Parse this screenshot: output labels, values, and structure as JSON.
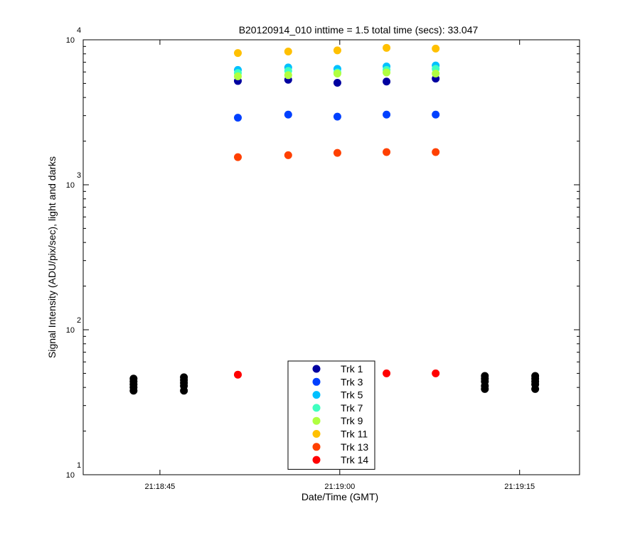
{
  "chart_data": {
    "type": "scatter",
    "title": "B20120914_010 inttime = 1.5 total time (secs): 33.047",
    "xlabel": "Date/Time (GMT)",
    "ylabel": "Signal Intensity (ADU/pix/sec), light and darks",
    "y_scale": "log",
    "ylim": [
      10,
      10000
    ],
    "xlim": [
      "21:18:38.6",
      "21:19:20.0"
    ],
    "x_ticks": [
      "21:18:45",
      "21:19:00",
      "21:19:15"
    ],
    "y_ticks": [
      {
        "base": "10",
        "exp": "1"
      },
      {
        "base": "10",
        "exp": "2"
      },
      {
        "base": "10",
        "exp": "3"
      },
      {
        "base": "10",
        "exp": "4"
      }
    ],
    "grid": false,
    "legend": "bottom-center",
    "series": [
      {
        "name": "Trk 1",
        "color": "#0000a0",
        "x": [
          "21:18:51.5",
          "21:18:55.7",
          "21:18:59.8",
          "21:19:03.9",
          "21:19:08.0"
        ],
        "y": [
          5200,
          5300,
          5050,
          5150,
          5400
        ]
      },
      {
        "name": "Trk 3",
        "color": "#0040ff",
        "x": [
          "21:18:51.5",
          "21:18:55.7",
          "21:18:59.8",
          "21:19:03.9",
          "21:19:08.0"
        ],
        "y": [
          2900,
          3050,
          2950,
          3050,
          3050
        ]
      },
      {
        "name": "Trk 5",
        "color": "#00c0ff",
        "x": [
          "21:18:51.5",
          "21:18:55.7",
          "21:18:59.8",
          "21:19:03.9",
          "21:19:08.0"
        ],
        "y": [
          6200,
          6450,
          6300,
          6550,
          6650
        ]
      },
      {
        "name": "Trk 7",
        "color": "#40ffc0",
        "x": [
          "21:18:51.5",
          "21:18:55.7",
          "21:18:59.8",
          "21:19:03.9",
          "21:19:08.0"
        ],
        "y": [
          5900,
          6100,
          5950,
          6200,
          6300
        ]
      },
      {
        "name": "Trk 9",
        "color": "#b0ff40",
        "x": [
          "21:18:51.5",
          "21:18:55.7",
          "21:18:59.8",
          "21:19:03.9",
          "21:19:08.0"
        ],
        "y": [
          5600,
          5700,
          5850,
          5950,
          5850
        ]
      },
      {
        "name": "Trk 11",
        "color": "#ffc000",
        "x": [
          "21:18:51.5",
          "21:18:55.7",
          "21:18:59.8",
          "21:19:03.9",
          "21:19:08.0"
        ],
        "y": [
          8100,
          8300,
          8450,
          8800,
          8700
        ]
      },
      {
        "name": "Trk 13",
        "color": "#ff4000",
        "x": [
          "21:18:51.5",
          "21:18:55.7",
          "21:18:59.8",
          "21:19:03.9",
          "21:19:08.0"
        ],
        "y": [
          1550,
          1600,
          1660,
          1680,
          1680
        ]
      },
      {
        "name": "Trk 14",
        "color": "#ff0000",
        "x": [
          "21:18:51.5",
          "21:19:03.9",
          "21:19:08.0"
        ],
        "y": [
          49,
          50,
          50
        ]
      },
      {
        "name": "",
        "color": "#000000",
        "x": [
          "21:18:42.8",
          "21:18:42.8",
          "21:18:42.8",
          "21:18:42.8",
          "21:18:42.8",
          "21:18:47.0",
          "21:18:47.0",
          "21:18:47.0",
          "21:18:47.0",
          "21:18:47.0",
          "21:19:12.1",
          "21:19:12.1",
          "21:19:12.1",
          "21:19:12.1",
          "21:19:12.1",
          "21:19:16.3",
          "21:19:16.3",
          "21:19:16.3",
          "21:19:16.3",
          "21:19:16.3"
        ],
        "y": [
          38,
          40,
          42,
          44,
          46,
          38,
          41,
          43,
          45,
          47,
          39,
          41,
          44,
          46,
          48,
          39,
          42,
          44,
          46,
          48
        ]
      }
    ]
  }
}
